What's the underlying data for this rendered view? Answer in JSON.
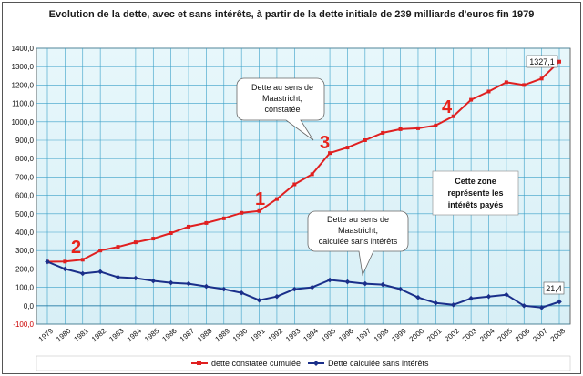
{
  "chart_data": {
    "type": "line",
    "title": "Evolution de la dette, avec et sans intérêts, à partir de la dette initiale de 239 milliards d'euros fin 1979",
    "x": [
      1979,
      1980,
      1981,
      1982,
      1983,
      1984,
      1985,
      1986,
      1987,
      1988,
      1989,
      1990,
      1991,
      1992,
      1993,
      1994,
      1995,
      1996,
      1997,
      1998,
      1999,
      2000,
      2001,
      2002,
      2003,
      2004,
      2005,
      2006,
      2007,
      2008
    ],
    "series": [
      {
        "name": "dette constatée cumulée",
        "color": "#e02020",
        "values": [
          239,
          240,
          250,
          300,
          320,
          345,
          365,
          395,
          430,
          450,
          475,
          505,
          515,
          580,
          660,
          715,
          830,
          860,
          900,
          940,
          960,
          965,
          980,
          1030,
          1120,
          1165,
          1215,
          1200,
          1235,
          1327.1
        ]
      },
      {
        "name": "Dette calculée sans intérêts",
        "color": "#1a2f8a",
        "values": [
          239,
          200,
          175,
          185,
          155,
          150,
          135,
          125,
          120,
          105,
          90,
          70,
          30,
          50,
          90,
          100,
          140,
          130,
          120,
          115,
          90,
          45,
          15,
          5,
          40,
          50,
          60,
          0,
          -10,
          21.4
        ]
      }
    ],
    "ylim": [
      -100,
      1400
    ],
    "yticks": [
      "-100,0",
      "0,0",
      "100,0",
      "200,0",
      "300,0",
      "400,0",
      "500,0",
      "600,0",
      "700,0",
      "800,0",
      "900,0",
      "1000,0",
      "1100,0",
      "1200,0",
      "1300,0",
      "1400,0"
    ],
    "xticks": [
      "1979",
      "1980",
      "1981",
      "1982",
      "1983",
      "1984",
      "1985",
      "1986",
      "1987",
      "1988",
      "1989",
      "1990",
      "1991",
      "1992",
      "1993",
      "1994",
      "1995",
      "1996",
      "1997",
      "1998",
      "1999",
      "2000",
      "2001",
      "2002",
      "2003",
      "2004",
      "2005",
      "2006",
      "2007",
      "2008"
    ],
    "grid": true,
    "legend": "bottom",
    "end_labels": [
      "1327,1",
      "21,4"
    ],
    "annotations": {
      "callout_top": [
        "Dette au sens de",
        "Maastricht,",
        "constatée"
      ],
      "callout_bottom": [
        "Dette au sens de",
        "Maastricht,",
        "calculée sans intérêts"
      ],
      "zone": [
        "Cette zone",
        "représente les",
        "intérêts payés"
      ],
      "numbers": [
        "1",
        "2",
        "3",
        "4"
      ]
    }
  }
}
